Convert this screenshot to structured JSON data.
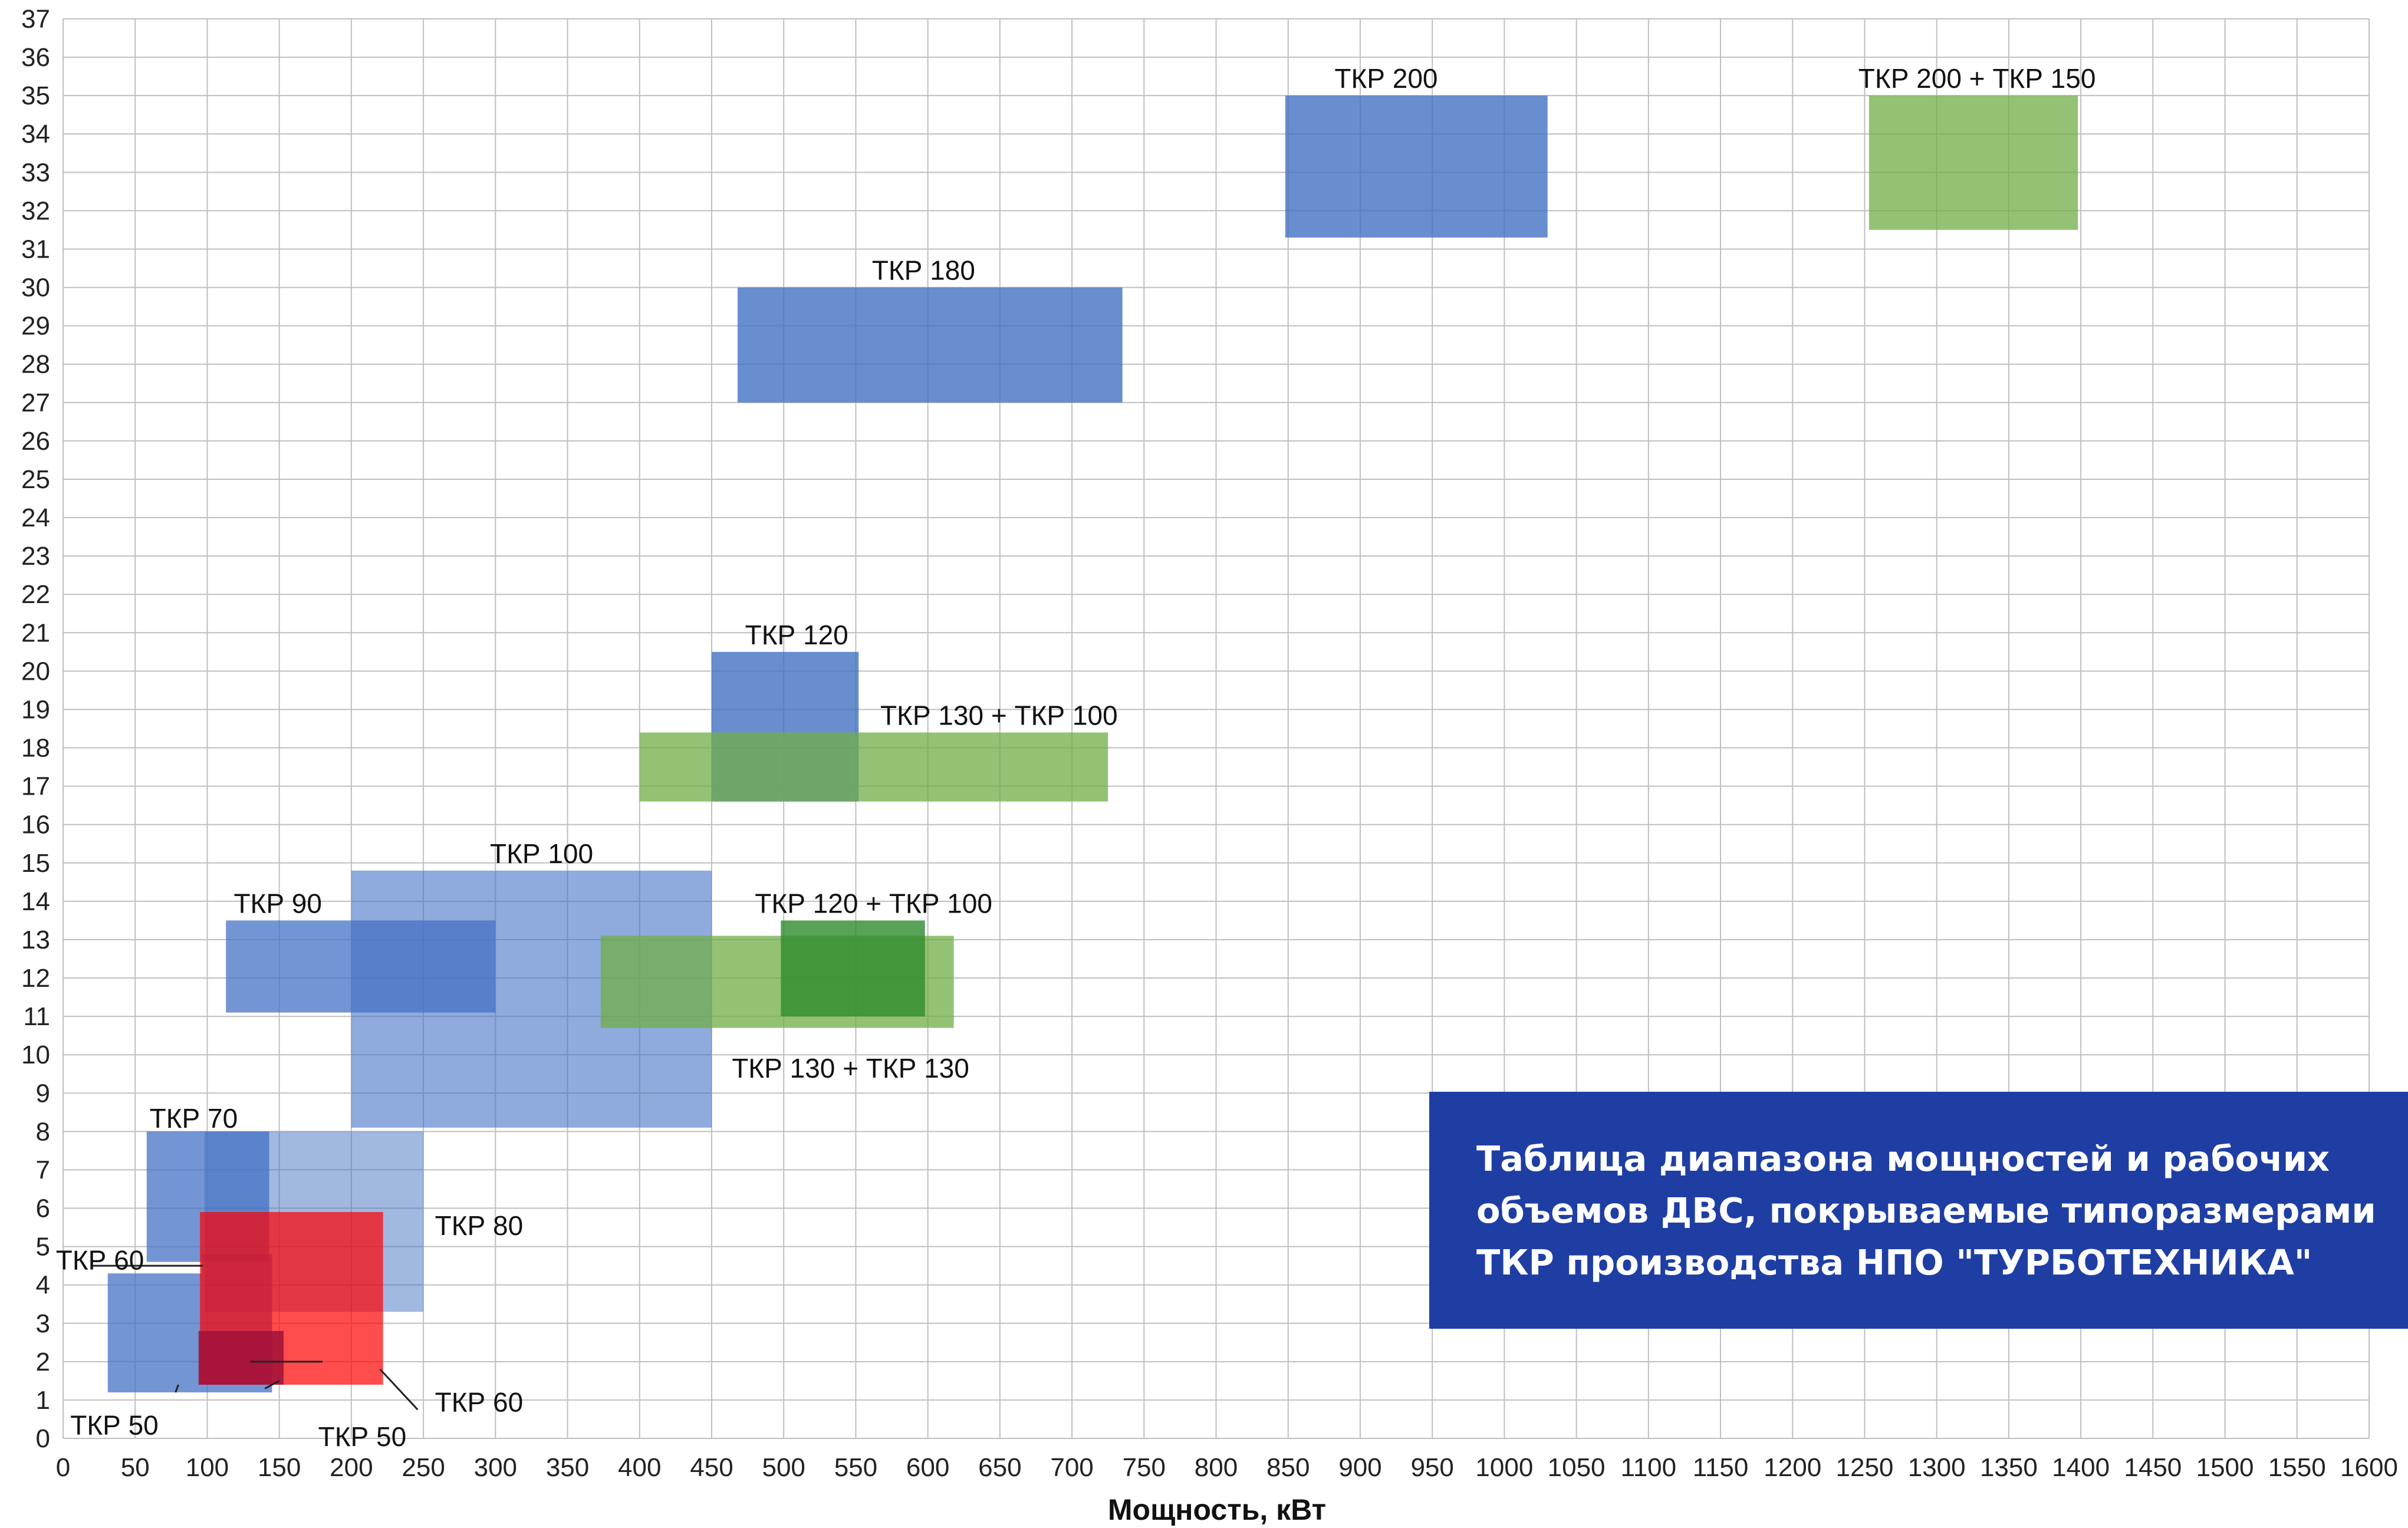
{
  "chart_data": {
    "type": "range-box",
    "xlabel": "Мощность, кВт",
    "ylabel": "",
    "xlim": [
      0,
      1600
    ],
    "ylim": [
      0,
      37
    ],
    "x_ticks": [
      0,
      50,
      100,
      150,
      200,
      250,
      300,
      350,
      400,
      450,
      500,
      550,
      600,
      650,
      700,
      750,
      800,
      850,
      900,
      950,
      1000,
      1050,
      1100,
      1150,
      1200,
      1250,
      1300,
      1350,
      1400,
      1450,
      1500,
      1550,
      1600
    ],
    "y_ticks": [
      0,
      1,
      2,
      3,
      4,
      5,
      6,
      7,
      8,
      9,
      10,
      11,
      12,
      13,
      14,
      15,
      16,
      17,
      18,
      19,
      20,
      21,
      22,
      23,
      24,
      25,
      26,
      27,
      28,
      29,
      30,
      31,
      32,
      33,
      34,
      35,
      36,
      37
    ],
    "grid": true,
    "colors": {
      "blue": "#4472c4",
      "green": "#70ad47",
      "red": "#ff0000",
      "dark_green": "#2e8b2e",
      "dark_red": "#a0103a",
      "grid": "#bfbfbf"
    },
    "ranges": [
      {
        "name": "ТКР 50",
        "power_kw": [
          31,
          145
        ],
        "volume": [
          1.2,
          4.3
        ],
        "color": "#4472c4",
        "opacity": 0.75
      },
      {
        "name": "ТКР 70",
        "power_kw": [
          58,
          143
        ],
        "volume": [
          4.6,
          8.0
        ],
        "color": "#4472c4",
        "opacity": 0.75
      },
      {
        "name": "ТКР 60",
        "power_kw": [
          96,
          145
        ],
        "volume": [
          4.3,
          4.8
        ],
        "color": "#4472c4",
        "opacity": 0.75
      },
      {
        "name": "ТКР 80",
        "power_kw": [
          98,
          250
        ],
        "volume": [
          3.3,
          8.0
        ],
        "color": "#4472c4",
        "opacity": 0.5
      },
      {
        "name": "ТКР 60",
        "power_kw": [
          95,
          222
        ],
        "volume": [
          1.4,
          5.9
        ],
        "color": "#ff0000",
        "opacity": 0.7
      },
      {
        "name": "ТКР 50",
        "power_kw": [
          94,
          153
        ],
        "volume": [
          1.4,
          2.8
        ],
        "color": "#a0103a",
        "opacity": 0.85
      },
      {
        "name": "ТКР 90",
        "power_kw": [
          113,
          300
        ],
        "volume": [
          11.1,
          13.5
        ],
        "color": "#4472c4",
        "opacity": 0.75
      },
      {
        "name": "ТКР 100",
        "power_kw": [
          200,
          450
        ],
        "volume": [
          8.1,
          14.8
        ],
        "color": "#4472c4",
        "opacity": 0.6
      },
      {
        "name": "ТКР 130 + ТКР 130",
        "power_kw": [
          373,
          618
        ],
        "volume": [
          10.7,
          13.1
        ],
        "color": "#70ad47",
        "opacity": 0.75
      },
      {
        "name": "ТКР 120 + ТКР 100",
        "power_kw": [
          498,
          598
        ],
        "volume": [
          11.0,
          13.5
        ],
        "color": "#2e8b2e",
        "opacity": 0.8
      },
      {
        "name": "ТКР 120",
        "power_kw": [
          450,
          552
        ],
        "volume": [
          16.6,
          20.5
        ],
        "color": "#4472c4",
        "opacity": 0.8
      },
      {
        "name": "ТКР 130 + ТКР 100",
        "power_kw": [
          400,
          725
        ],
        "volume": [
          16.6,
          18.4
        ],
        "color": "#70ad47",
        "opacity": 0.75
      },
      {
        "name": "ТКР 180",
        "power_kw": [
          468,
          735
        ],
        "volume": [
          27.0,
          30.0
        ],
        "color": "#4472c4",
        "opacity": 0.8
      },
      {
        "name": "ТКР 200",
        "power_kw": [
          848,
          1030
        ],
        "volume": [
          31.3,
          35.0
        ],
        "color": "#4472c4",
        "opacity": 0.8
      },
      {
        "name": "ТКР 200 + ТКР 150",
        "power_kw": [
          1253,
          1398
        ],
        "volume": [
          31.5,
          35.0
        ],
        "color": "#70ad47",
        "opacity": 0.75
      }
    ],
    "range_labels": [
      {
        "text": "ТКР 200",
        "at_kw": 918,
        "at_volume": 35.2,
        "anchor": "middle"
      },
      {
        "text": "ТКР 200 + ТКР 150",
        "at_kw": 1328,
        "at_volume": 35.2,
        "anchor": "middle"
      },
      {
        "text": "ТКР 180",
        "at_kw": 597,
        "at_volume": 30.2,
        "anchor": "middle"
      },
      {
        "text": "ТКР 120",
        "at_kw": 509,
        "at_volume": 20.7,
        "anchor": "middle"
      },
      {
        "text": "ТКР 130 + ТКР 100",
        "at_kw": 567,
        "at_volume": 18.6,
        "anchor": "start"
      },
      {
        "text": "ТКР 100",
        "at_kw": 332,
        "at_volume": 15.0,
        "anchor": "middle"
      },
      {
        "text": "ТКР 90",
        "at_kw": 149,
        "at_volume": 13.7,
        "anchor": "middle"
      },
      {
        "text": "ТКР 120 + ТКР 100",
        "at_kw": 480,
        "at_volume": 13.7,
        "anchor": "start"
      },
      {
        "text": "ТКР 130 + ТКР 130",
        "at_kw": 464,
        "at_volume": 9.4,
        "anchor": "start"
      },
      {
        "text": "ТКР 70",
        "at_kw": 60,
        "at_volume": 8.1,
        "anchor": "start"
      },
      {
        "text": "ТКР 80",
        "at_kw": 258,
        "at_volume": 5.3,
        "anchor": "start"
      },
      {
        "text": "ТКР 60",
        "at_kw": -5,
        "at_volume": 4.4,
        "anchor": "start"
      },
      {
        "text": "ТКР 60",
        "at_kw": 258,
        "at_volume": 0.7,
        "anchor": "start"
      },
      {
        "text": "ТКР 50",
        "at_kw": 5,
        "at_volume": 0.1,
        "anchor": "start"
      },
      {
        "text": "ТКР 50",
        "at_kw": 177,
        "at_volume": -0.2,
        "anchor": "start"
      }
    ]
  },
  "info_box": {
    "line1": "Таблица диапазона мощностей и рабочих",
    "line2": "объемов ДВС, покрываемые типоразмерами",
    "line3": "ТКР производства НПО \"ТУРБОТЕХНИКА\""
  }
}
